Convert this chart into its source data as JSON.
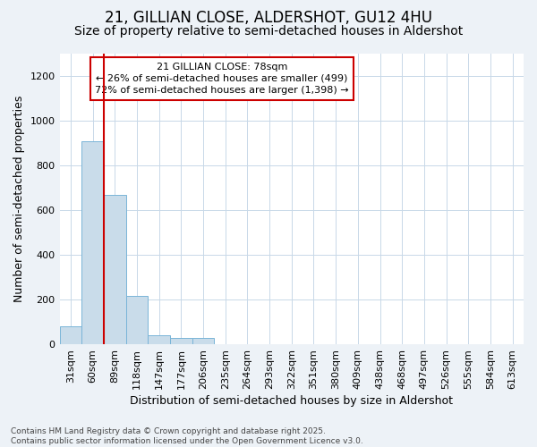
{
  "title_line1": "21, GILLIAN CLOSE, ALDERSHOT, GU12 4HU",
  "title_line2": "Size of property relative to semi-detached houses in Aldershot",
  "xlabel": "Distribution of semi-detached houses by size in Aldershot",
  "ylabel": "Number of semi-detached properties",
  "bin_labels": [
    "31sqm",
    "60sqm",
    "89sqm",
    "118sqm",
    "147sqm",
    "177sqm",
    "206sqm",
    "235sqm",
    "264sqm",
    "293sqm",
    "322sqm",
    "351sqm",
    "380sqm",
    "409sqm",
    "438sqm",
    "468sqm",
    "497sqm",
    "526sqm",
    "555sqm",
    "584sqm",
    "613sqm"
  ],
  "bar_values": [
    80,
    910,
    670,
    215,
    40,
    30,
    30,
    0,
    0,
    0,
    0,
    0,
    0,
    0,
    0,
    0,
    0,
    0,
    0,
    0,
    0
  ],
  "bar_color": "#c9dcea",
  "bar_edgecolor": "#7ab5d8",
  "vline_x": 1.5,
  "vline_color": "#cc0000",
  "annotation_text": "21 GILLIAN CLOSE: 78sqm\n← 26% of semi-detached houses are smaller (499)\n72% of semi-detached houses are larger (1,398) →",
  "annotation_box_facecolor": "white",
  "annotation_box_edgecolor": "#cc0000",
  "ylim": [
    0,
    1300
  ],
  "yticks": [
    0,
    200,
    400,
    600,
    800,
    1000,
    1200
  ],
  "footer_line1": "Contains HM Land Registry data © Crown copyright and database right 2025.",
  "footer_line2": "Contains public sector information licensed under the Open Government Licence v3.0.",
  "background_color": "#edf2f7",
  "plot_background": "white",
  "grid_color": "#c8d8e8",
  "title1_fontsize": 12,
  "title2_fontsize": 10,
  "axis_label_fontsize": 9,
  "tick_fontsize": 8,
  "annot_fontsize": 8,
  "footer_fontsize": 6.5
}
